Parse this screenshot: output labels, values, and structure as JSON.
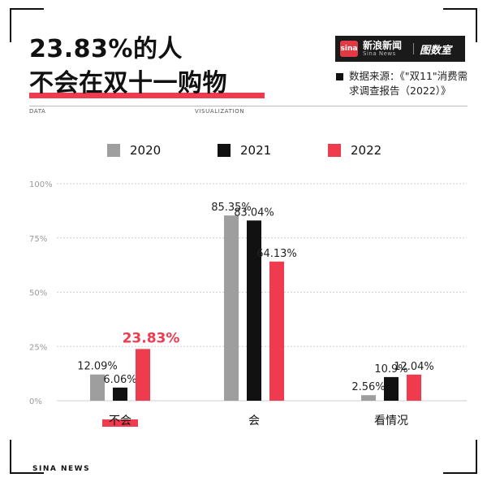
{
  "header": {
    "title_line1": "23.83%的人",
    "title_line2": "不会在双十一购物",
    "brand_name": "新浪新闻",
    "brand_sub": "Sina News",
    "brand_logo": "sina",
    "brand_partner": "图数室",
    "source_text": "数据来源：《\"双11\"消费需求调查报告（2022）》",
    "rule_left": "DATA",
    "rule_right": "VISUALIZATION"
  },
  "footer": {
    "brand": "SINA NEWS"
  },
  "colors": {
    "2020": "#9e9e9e",
    "2021": "#111111",
    "2022": "#ee3b4e",
    "grid": "#cfcfcf",
    "axis_text": "#999999"
  },
  "chart_data": {
    "type": "bar",
    "title": "23.83%的人 不会在双十一购物",
    "categories": [
      "不会",
      "会",
      "看情况"
    ],
    "series": [
      {
        "name": "2020",
        "values": [
          12.09,
          85.35,
          2.56
        ],
        "labels": [
          "12.09%",
          "85.35%",
          "2.56%"
        ]
      },
      {
        "name": "2021",
        "values": [
          6.06,
          83.04,
          10.9
        ],
        "labels": [
          "6.06%",
          "83.04%",
          "10.9%"
        ]
      },
      {
        "name": "2022",
        "values": [
          23.83,
          64.13,
          12.04
        ],
        "labels": [
          "23.83%",
          "64.13%",
          "12.04%"
        ]
      }
    ],
    "yticks": [
      "0%",
      "25%",
      "50%",
      "75%",
      "100%"
    ],
    "ytick_values": [
      0,
      25,
      50,
      75,
      100
    ],
    "ylim": [
      0,
      100
    ],
    "grid": true,
    "legend": "top"
  }
}
